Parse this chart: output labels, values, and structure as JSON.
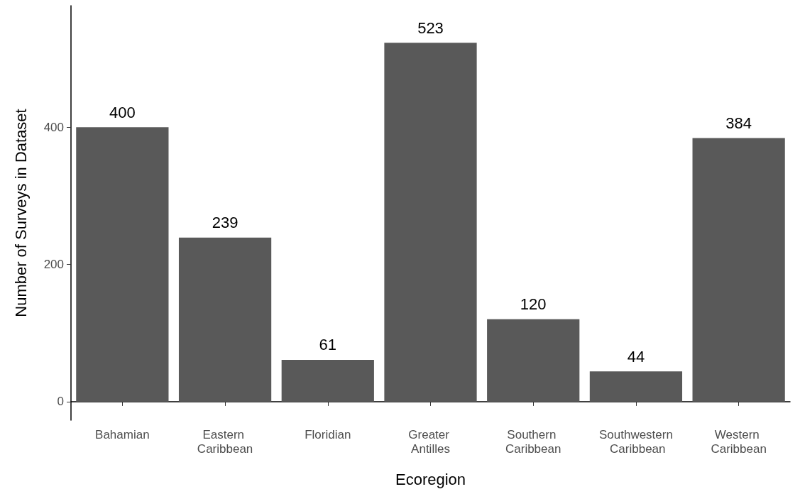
{
  "chart_data": {
    "type": "bar",
    "xlabel": "Ecoregion",
    "ylabel": "Number of Surveys in Dataset",
    "categories": [
      "Bahamian",
      "Eastern Caribbean",
      "Floridian",
      "Greater Antilles",
      "Southern Caribbean",
      "Southwestern Caribbean",
      "Western Caribbean"
    ],
    "values": [
      400,
      239,
      61,
      523,
      120,
      44,
      384
    ],
    "color": "#595959",
    "data_labels": true,
    "ylim": [
      -27,
      577
    ],
    "yticks": [
      0,
      200,
      400
    ],
    "grid": false
  }
}
